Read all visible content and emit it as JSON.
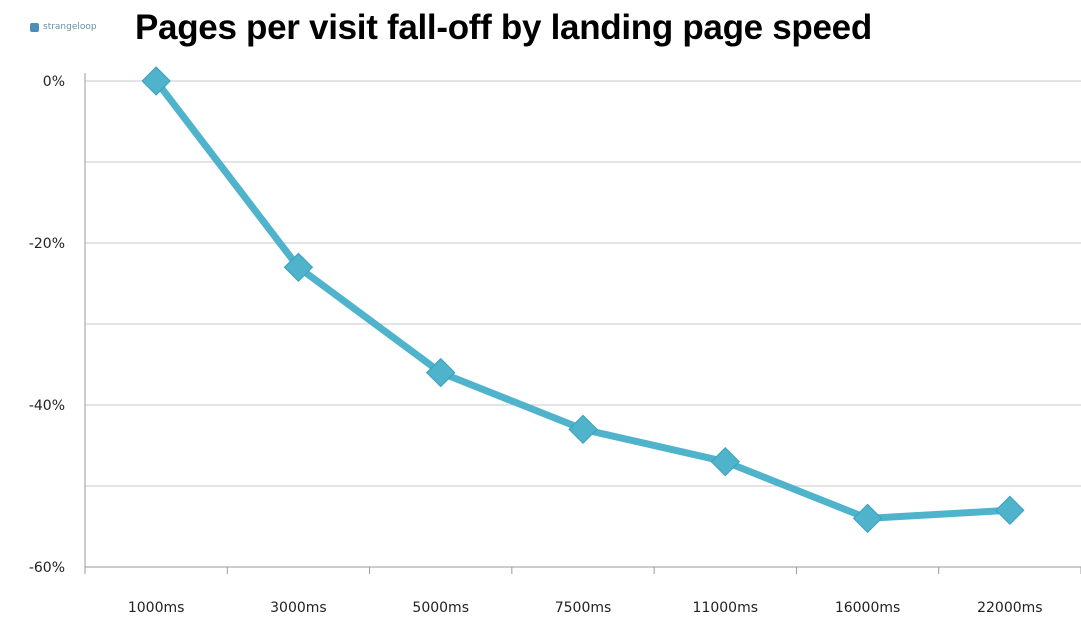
{
  "logo": {
    "text": "strangeloop",
    "icon": "strangeloop-logo-icon"
  },
  "chart_data": {
    "type": "line",
    "title": "Pages per visit fall-off by landing page speed",
    "categories": [
      "1000ms",
      "3000ms",
      "5000ms",
      "7500ms",
      "11000ms",
      "16000ms",
      "22000ms"
    ],
    "series": [
      {
        "values": [
          0,
          -23,
          -36,
          -43,
          -47,
          -54,
          -53
        ],
        "color": "#4fb3cc",
        "marker": "diamond"
      }
    ],
    "y_ticks": [
      0,
      -20,
      -40,
      -60
    ],
    "y_tick_labels": [
      "0%",
      "-20%",
      "-40%",
      "-60%"
    ],
    "ylim": [
      -60,
      0
    ],
    "grid": true,
    "gridline_step": 10,
    "xlabel": "",
    "ylabel": ""
  }
}
